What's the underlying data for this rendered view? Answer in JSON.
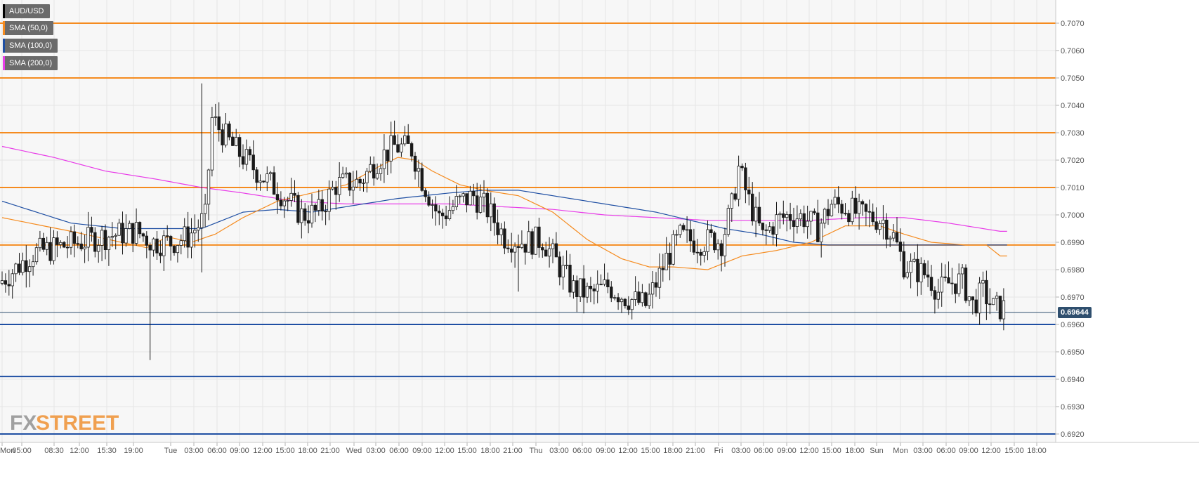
{
  "legend": {
    "items": [
      {
        "label": "AUD/USD",
        "color": "#000000"
      },
      {
        "label": "SMA (50,0)",
        "color": "#f58b1f"
      },
      {
        "label": "SMA (100,0)",
        "color": "#1f4fa3"
      },
      {
        "label": "SMA (200,0)",
        "color": "#e83ce8"
      }
    ]
  },
  "watermark": {
    "fx": "FX",
    "street": "STREET"
  },
  "current_price": "0.69644",
  "chart_data": {
    "type": "candlestick",
    "symbol": "AUD/USD",
    "ylim": [
      0.6917,
      0.7078
    ],
    "y_ticks": [
      "0.7070",
      "0.7060",
      "0.7050",
      "0.7040",
      "0.7030",
      "0.7020",
      "0.7010",
      "0.7000",
      "0.6990",
      "0.6980",
      "0.6970",
      "0.6960",
      "0.6950",
      "0.6940",
      "0.6930",
      "0.6920"
    ],
    "x_ticks": [
      "Mon",
      "05:00",
      "08:30",
      "12:00",
      "15:30",
      "19:00",
      "Tue",
      "03:00",
      "06:00",
      "09:00",
      "12:00",
      "15:00",
      "18:00",
      "21:00",
      "Wed",
      "03:00",
      "06:00",
      "09:00",
      "12:00",
      "15:00",
      "18:00",
      "21:00",
      "Thu",
      "03:00",
      "06:00",
      "09:00",
      "12:00",
      "15:00",
      "18:00",
      "21:00",
      "Fri",
      "03:00",
      "06:00",
      "09:00",
      "12:00",
      "15:00",
      "18:00",
      "Sun",
      "Mon",
      "03:00",
      "06:00",
      "09:00",
      "12:00",
      "15:00",
      "18:00"
    ],
    "resistance_levels": [
      0.707,
      0.705,
      0.703,
      0.701,
      0.6989
    ],
    "support_levels": [
      0.696,
      0.6941,
      0.692
    ],
    "current_price": 0.69644,
    "close_anchors": [
      [
        0,
        0.6975
      ],
      [
        10,
        0.6986
      ],
      [
        20,
        0.6989
      ],
      [
        30,
        0.6992
      ],
      [
        40,
        0.6994
      ],
      [
        45,
        0.699
      ],
      [
        50,
        0.699
      ],
      [
        55,
        0.6992
      ],
      [
        60,
        0.6999
      ],
      [
        62,
        0.7035
      ],
      [
        68,
        0.7025
      ],
      [
        75,
        0.7016
      ],
      [
        82,
        0.7008
      ],
      [
        88,
        0.7
      ],
      [
        93,
        0.7001
      ],
      [
        98,
        0.7011
      ],
      [
        105,
        0.7012
      ],
      [
        110,
        0.702
      ],
      [
        115,
        0.7025
      ],
      [
        120,
        0.7024
      ],
      [
        123,
        0.7013
      ],
      [
        128,
        0.6999
      ],
      [
        133,
        0.7004
      ],
      [
        138,
        0.7007
      ],
      [
        142,
        0.7002
      ],
      [
        147,
        0.6992
      ],
      [
        153,
        0.699
      ],
      [
        158,
        0.6991
      ],
      [
        162,
        0.6983
      ],
      [
        167,
        0.6973
      ],
      [
        172,
        0.6971
      ],
      [
        177,
        0.6974
      ],
      [
        182,
        0.697
      ],
      [
        188,
        0.6967
      ],
      [
        191,
        0.6975
      ],
      [
        194,
        0.6984
      ],
      [
        198,
        0.6992
      ],
      [
        203,
        0.699
      ],
      [
        208,
        0.6991
      ],
      [
        210,
        0.699
      ],
      [
        213,
        0.7003
      ],
      [
        215,
        0.7017
      ],
      [
        218,
        0.7005
      ],
      [
        222,
        0.6992
      ],
      [
        226,
        0.6998
      ],
      [
        230,
        0.7
      ],
      [
        234,
        0.6999
      ],
      [
        238,
        0.6995
      ],
      [
        242,
        0.7004
      ],
      [
        246,
        0.7003
      ],
      [
        250,
        0.7
      ],
      [
        254,
        0.6999
      ],
      [
        257,
        0.6998
      ],
      [
        260,
        0.6992
      ],
      [
        263,
        0.6982
      ],
      [
        266,
        0.698
      ],
      [
        270,
        0.6978
      ],
      [
        273,
        0.6972
      ],
      [
        276,
        0.6975
      ],
      [
        280,
        0.6976
      ],
      [
        283,
        0.6967
      ],
      [
        286,
        0.6972
      ],
      [
        289,
        0.6966
      ]
    ],
    "sma_50": [
      [
        0,
        0.6999
      ],
      [
        20,
        0.6994
      ],
      [
        42,
        0.6988
      ],
      [
        48,
        0.6992
      ],
      [
        55,
        0.699
      ],
      [
        62,
        0.6993
      ],
      [
        70,
        0.6999
      ],
      [
        80,
        0.7005
      ],
      [
        90,
        0.7008
      ],
      [
        100,
        0.7011
      ],
      [
        110,
        0.7018
      ],
      [
        115,
        0.7021
      ],
      [
        120,
        0.702
      ],
      [
        125,
        0.7016
      ],
      [
        133,
        0.7011
      ],
      [
        140,
        0.7009
      ],
      [
        150,
        0.7007
      ],
      [
        160,
        0.7001
      ],
      [
        170,
        0.6991
      ],
      [
        180,
        0.6984
      ],
      [
        188,
        0.6981
      ],
      [
        195,
        0.6981
      ],
      [
        205,
        0.698
      ],
      [
        215,
        0.6985
      ],
      [
        225,
        0.6987
      ],
      [
        235,
        0.699
      ],
      [
        245,
        0.6996
      ],
      [
        255,
        0.6996
      ],
      [
        262,
        0.6993
      ],
      [
        270,
        0.699
      ],
      [
        280,
        0.6989
      ],
      [
        286,
        0.6989
      ],
      [
        290,
        0.6985
      ]
    ],
    "sma_100": [
      [
        0,
        0.7005
      ],
      [
        20,
        0.6997
      ],
      [
        35,
        0.6995
      ],
      [
        50,
        0.6995
      ],
      [
        58,
        0.6995
      ],
      [
        70,
        0.7001
      ],
      [
        80,
        0.7002
      ],
      [
        90,
        0.7001
      ],
      [
        100,
        0.7003
      ],
      [
        115,
        0.7006
      ],
      [
        130,
        0.7008
      ],
      [
        140,
        0.7009
      ],
      [
        150,
        0.7009
      ],
      [
        160,
        0.7007
      ],
      [
        175,
        0.7004
      ],
      [
        190,
        0.7001
      ],
      [
        200,
        0.6998
      ],
      [
        210,
        0.6995
      ],
      [
        220,
        0.6993
      ],
      [
        230,
        0.699
      ],
      [
        240,
        0.6989
      ],
      [
        250,
        0.6989
      ],
      [
        262,
        0.6989
      ],
      [
        275,
        0.6989
      ],
      [
        290,
        0.6989
      ]
    ],
    "sma_200": [
      [
        0,
        0.7025
      ],
      [
        15,
        0.7021
      ],
      [
        30,
        0.7016
      ],
      [
        45,
        0.7013
      ],
      [
        58,
        0.701
      ],
      [
        70,
        0.7008
      ],
      [
        85,
        0.7005
      ],
      [
        100,
        0.7004
      ],
      [
        115,
        0.7004
      ],
      [
        130,
        0.7004
      ],
      [
        145,
        0.7003
      ],
      [
        160,
        0.7002
      ],
      [
        175,
        0.7
      ],
      [
        190,
        0.6999
      ],
      [
        205,
        0.6998
      ],
      [
        220,
        0.6998
      ],
      [
        235,
        0.6998
      ],
      [
        250,
        0.6999
      ],
      [
        262,
        0.6999
      ],
      [
        275,
        0.6997
      ],
      [
        290,
        0.6994
      ]
    ],
    "special_wicks": [
      {
        "bar": 43,
        "low": 0.6947
      },
      {
        "bar": 58,
        "high": 0.7048,
        "low": 0.6979
      },
      {
        "bar": 216,
        "high": 0.7019
      },
      {
        "bar": 150,
        "low": 0.6972
      }
    ],
    "grid": true
  }
}
